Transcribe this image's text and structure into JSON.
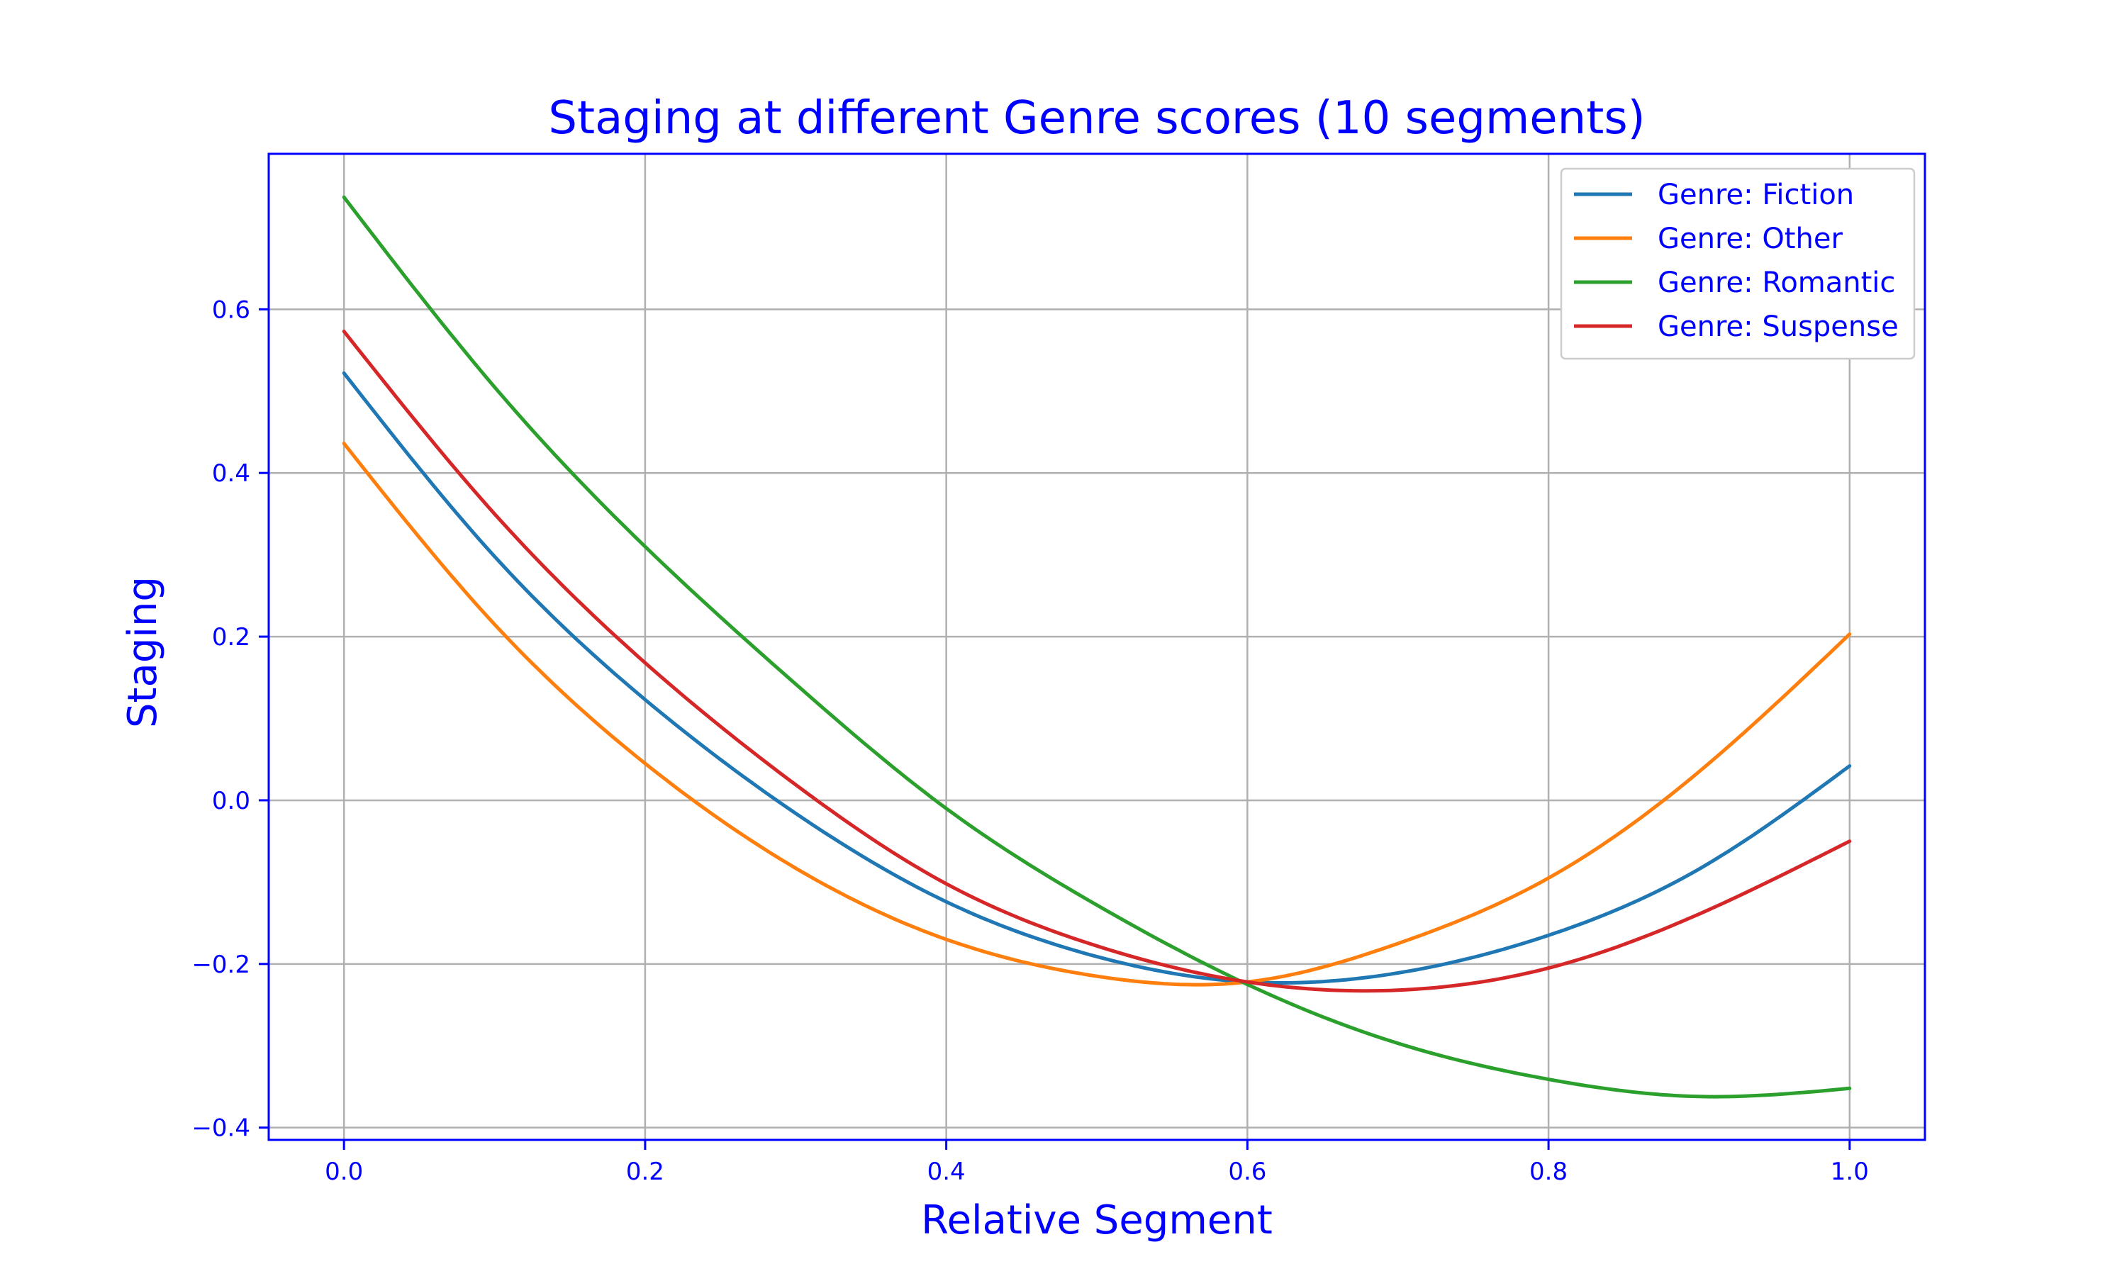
{
  "chart_data": {
    "type": "line",
    "title": "Staging at different Genre scores (10 segments)",
    "xlabel": "Relative Segment",
    "ylabel": "Staging",
    "xlim": [
      -0.05,
      1.05
    ],
    "ylim": [
      -0.415,
      0.79
    ],
    "xticks": [
      0.0,
      0.2,
      0.4,
      0.6,
      0.8,
      1.0
    ],
    "xtick_labels": [
      "0.0",
      "0.2",
      "0.4",
      "0.6",
      "0.8",
      "1.0"
    ],
    "yticks": [
      -0.4,
      -0.2,
      0.0,
      0.2,
      0.4,
      0.6
    ],
    "ytick_labels": [
      "−0.4",
      "−0.2",
      "0.0",
      "0.2",
      "0.4",
      "0.6"
    ],
    "grid": true,
    "legend_position": "top-right",
    "x": [
      0.0,
      0.1,
      0.2,
      0.3,
      0.4,
      0.5,
      0.6,
      0.7,
      0.8,
      0.9,
      1.0
    ],
    "series": [
      {
        "name": "Genre: Fiction",
        "color": "#1f77b4",
        "values": [
          0.522,
          0.298,
          0.123,
          -0.016,
          -0.124,
          -0.191,
          -0.222,
          -0.211,
          -0.165,
          -0.084,
          0.042
        ]
      },
      {
        "name": "Genre: Other",
        "color": "#ff7f0e",
        "values": [
          0.436,
          0.215,
          0.045,
          -0.083,
          -0.17,
          -0.215,
          -0.222,
          -0.175,
          -0.095,
          0.035,
          0.203
        ]
      },
      {
        "name": "Genre: Romantic",
        "color": "#2ca02c",
        "values": [
          0.737,
          0.505,
          0.31,
          0.142,
          -0.01,
          -0.128,
          -0.225,
          -0.297,
          -0.341,
          -0.362,
          -0.352
        ]
      },
      {
        "name": "Genre: Suspense",
        "color": "#d62728",
        "values": [
          0.573,
          0.35,
          0.168,
          0.019,
          -0.102,
          -0.178,
          -0.222,
          -0.232,
          -0.205,
          -0.139,
          -0.05
        ]
      }
    ]
  }
}
